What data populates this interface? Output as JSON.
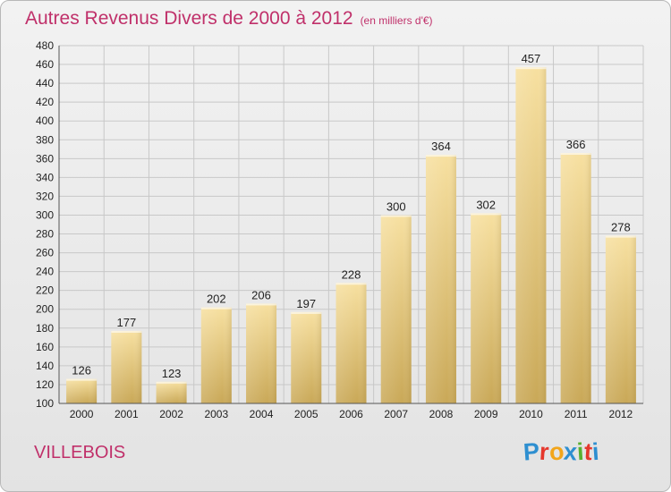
{
  "header": {
    "title": "Autres Revenus Divers de 2000 à 2012",
    "unit": "(en milliers d'€)"
  },
  "commune": "VILLEBOIS",
  "logo": {
    "text": "Proxiti",
    "letters": [
      {
        "ch": "P",
        "color": "#2e8fd0"
      },
      {
        "ch": "r",
        "color": "#e5372c"
      },
      {
        "ch": "o",
        "color": "#f2a51a"
      },
      {
        "ch": "x",
        "color": "#2e8fd0"
      },
      {
        "ch": "i",
        "color": "#58b030"
      },
      {
        "ch": "t",
        "color": "#e5372c"
      },
      {
        "ch": "i",
        "color": "#2e8fd0"
      }
    ]
  },
  "colors": {
    "title": "#c0306a",
    "bar_top": "#f7e0a0",
    "bar_bottom": "#c9a857",
    "grid": "#c8c8c8",
    "axis_text": "#222222"
  },
  "chart_data": {
    "type": "bar",
    "title": "Autres Revenus Divers de 2000 à 2012",
    "subtitle": "(en milliers d'€)",
    "xlabel": "",
    "ylabel": "",
    "categories": [
      "2000",
      "2001",
      "2002",
      "2003",
      "2004",
      "2005",
      "2006",
      "2007",
      "2008",
      "2009",
      "2010",
      "2011",
      "2012"
    ],
    "values": [
      126,
      177,
      123,
      202,
      206,
      197,
      228,
      300,
      364,
      302,
      457,
      366,
      278
    ],
    "ylim": [
      100,
      480
    ],
    "yticks": [
      100,
      120,
      140,
      160,
      180,
      200,
      220,
      240,
      260,
      280,
      300,
      320,
      340,
      360,
      380,
      400,
      420,
      440,
      460,
      480
    ],
    "grid": true,
    "legend": "none",
    "data_labels": true
  }
}
